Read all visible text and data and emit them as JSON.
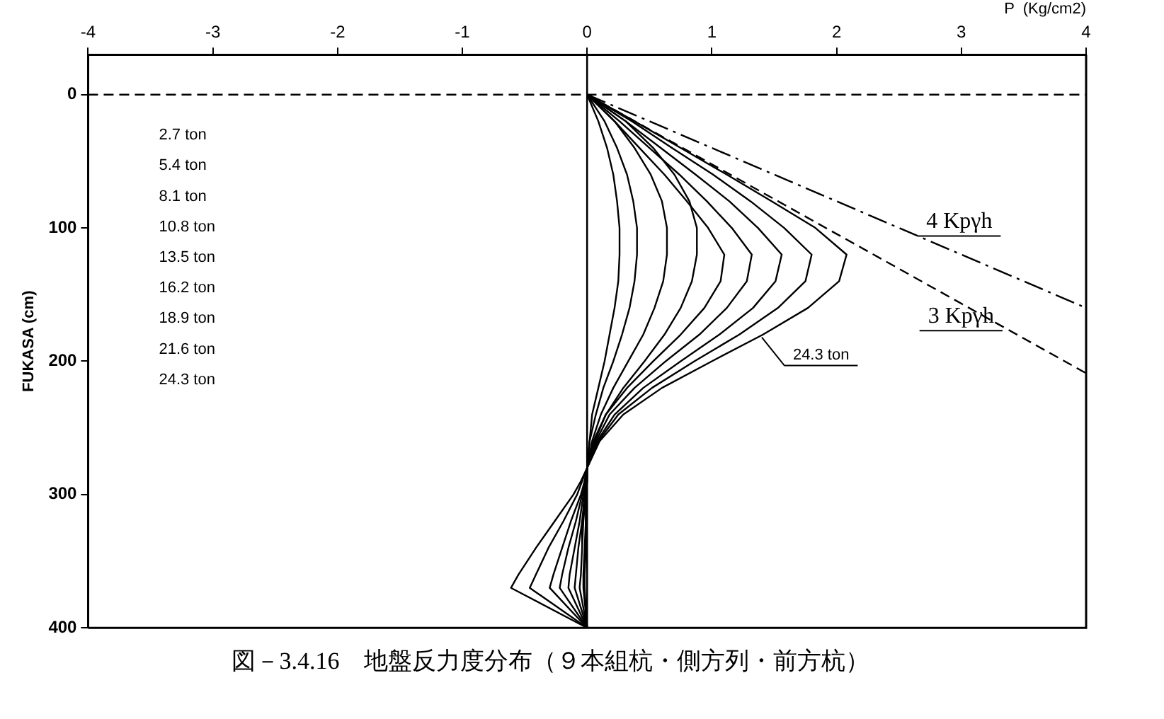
{
  "chart_data": {
    "type": "line",
    "title": "図－3.4.16　地盤反力度分布（９本組杭・側方列・前方杭）",
    "xlabel": "P  (Kg/cm2)",
    "ylabel": "FUKASA (cm)",
    "xlim": [
      -4,
      4
    ],
    "xticks": [
      -4,
      -3,
      -2,
      -1,
      0,
      1,
      2,
      3,
      4
    ],
    "ylim": [
      400,
      -30
    ],
    "yticks": [
      0,
      100,
      200,
      300,
      400
    ],
    "grid": false,
    "marker": "none",
    "series": [
      {
        "color": "#000000",
        "x": [
          0,
          0.09,
          0.16,
          0.21,
          0.24,
          0.26,
          0.26,
          0.25,
          0.22,
          0.18,
          0.14,
          0.09,
          0.04,
          0.02,
          0,
          -0.01,
          -0.01,
          -0.02,
          -0.02,
          0
        ],
        "values": [
          0,
          20,
          40,
          60,
          80,
          100,
          120,
          140,
          160,
          180,
          200,
          220,
          240,
          260,
          280,
          320,
          340,
          360,
          370,
          400
        ]
      },
      {
        "color": "#000000",
        "x": [
          0,
          0.14,
          0.24,
          0.32,
          0.37,
          0.4,
          0.4,
          0.38,
          0.34,
          0.28,
          0.21,
          0.13,
          0.07,
          0.02,
          0,
          0,
          -0.01,
          -0.01,
          -0.02,
          -0.03,
          -0.03,
          0
        ],
        "values": [
          0,
          20,
          40,
          60,
          80,
          100,
          120,
          140,
          160,
          180,
          200,
          220,
          240,
          260,
          280,
          290,
          300,
          320,
          340,
          360,
          370,
          400
        ]
      },
      {
        "color": "#000000",
        "x": [
          0,
          0.22,
          0.38,
          0.51,
          0.6,
          0.64,
          0.64,
          0.61,
          0.54,
          0.45,
          0.33,
          0.21,
          0.11,
          0.04,
          0,
          0,
          -0.01,
          -0.03,
          -0.04,
          -0.05,
          -0.06,
          0
        ],
        "values": [
          0,
          20,
          40,
          60,
          80,
          100,
          120,
          140,
          160,
          180,
          200,
          220,
          240,
          260,
          280,
          290,
          300,
          320,
          340,
          360,
          370,
          400
        ]
      },
      {
        "color": "#000000",
        "x": [
          0,
          0.31,
          0.53,
          0.7,
          0.82,
          0.88,
          0.88,
          0.84,
          0.75,
          0.62,
          0.46,
          0.29,
          0.15,
          0.05,
          0,
          -0.01,
          -0.02,
          -0.04,
          -0.07,
          -0.09,
          -0.1,
          0
        ],
        "values": [
          0,
          20,
          40,
          60,
          80,
          100,
          120,
          140,
          160,
          180,
          200,
          220,
          240,
          260,
          280,
          290,
          300,
          320,
          340,
          360,
          370,
          400
        ]
      },
      {
        "color": "#000000",
        "x": [
          0,
          0.22,
          0.42,
          0.62,
          0.8,
          0.97,
          1.1,
          1.07,
          0.94,
          0.75,
          0.53,
          0.32,
          0.15,
          0.06,
          0,
          -0.01,
          -0.03,
          -0.06,
          -0.1,
          -0.14,
          -0.15,
          0
        ],
        "values": [
          0,
          20,
          40,
          60,
          80,
          100,
          120,
          140,
          160,
          180,
          200,
          220,
          240,
          260,
          280,
          290,
          300,
          320,
          340,
          360,
          370,
          400
        ]
      },
      {
        "color": "#000000",
        "x": [
          0,
          0.26,
          0.5,
          0.74,
          0.96,
          1.16,
          1.32,
          1.28,
          1.12,
          0.9,
          0.63,
          0.38,
          0.18,
          0.07,
          0,
          -0.02,
          -0.04,
          -0.09,
          -0.15,
          -0.2,
          -0.22,
          0
        ],
        "values": [
          0,
          20,
          40,
          60,
          80,
          100,
          120,
          140,
          160,
          180,
          200,
          220,
          240,
          260,
          280,
          290,
          300,
          320,
          340,
          360,
          370,
          400
        ]
      },
      {
        "color": "#000000",
        "x": [
          0,
          0.31,
          0.59,
          0.87,
          1.14,
          1.37,
          1.56,
          1.51,
          1.33,
          1.06,
          0.75,
          0.45,
          0.22,
          0.08,
          0,
          -0.02,
          -0.05,
          -0.13,
          -0.2,
          -0.27,
          -0.3,
          0
        ],
        "values": [
          0,
          20,
          40,
          60,
          80,
          100,
          120,
          140,
          160,
          180,
          200,
          220,
          240,
          260,
          280,
          290,
          300,
          320,
          340,
          360,
          370,
          400
        ]
      },
      {
        "color": "#000000",
        "x": [
          0,
          0.36,
          0.68,
          1.01,
          1.31,
          1.58,
          1.8,
          1.75,
          1.53,
          1.22,
          0.86,
          0.52,
          0.25,
          0.09,
          0,
          -0.04,
          -0.08,
          -0.19,
          -0.31,
          -0.41,
          -0.46,
          0
        ],
        "values": [
          0,
          20,
          40,
          60,
          80,
          100,
          120,
          140,
          160,
          180,
          200,
          220,
          240,
          260,
          280,
          290,
          300,
          320,
          340,
          360,
          370,
          400
        ]
      },
      {
        "color": "#000000",
        "x": [
          0,
          0.38,
          0.75,
          1.12,
          1.48,
          1.83,
          2.08,
          2.02,
          1.77,
          1.41,
          1.0,
          0.6,
          0.29,
          0.1,
          0,
          -0.05,
          -0.11,
          -0.26,
          -0.41,
          -0.55,
          -0.61,
          0
        ],
        "values": [
          0,
          20,
          40,
          60,
          80,
          100,
          120,
          140,
          160,
          180,
          200,
          220,
          240,
          260,
          280,
          290,
          300,
          320,
          340,
          360,
          370,
          400
        ]
      },
      {
        "color": "#000000",
        "line_style": "dashed",
        "x": [
          0,
          4
        ],
        "values": [
          0,
          209
        ]
      },
      {
        "color": "#000000",
        "line_style": "dashdot",
        "x": [
          0,
          4
        ],
        "values": [
          0,
          160
        ]
      }
    ],
    "ref_lines": [
      {
        "axis": "y",
        "value": 0,
        "color": "#000000",
        "line_style": "dashed"
      },
      {
        "axis": "x",
        "value": 0,
        "color": "#000000",
        "line_style": "solid"
      }
    ],
    "annotations": [
      "2.7 ton",
      "5.4 ton",
      "8.1 ton",
      "10.8 ton",
      "13.5 ton",
      "16.2 ton",
      "18.9 ton",
      "21.6 ton",
      "24.3 ton",
      {
        "text": "4 Kpγh",
        "x": 2.65,
        "y": 106
      },
      {
        "text": "3 Kpγh",
        "x": 3.33,
        "y": 177
      },
      {
        "text": "24.3 ton",
        "x": 1.4,
        "y": 182
      }
    ]
  }
}
